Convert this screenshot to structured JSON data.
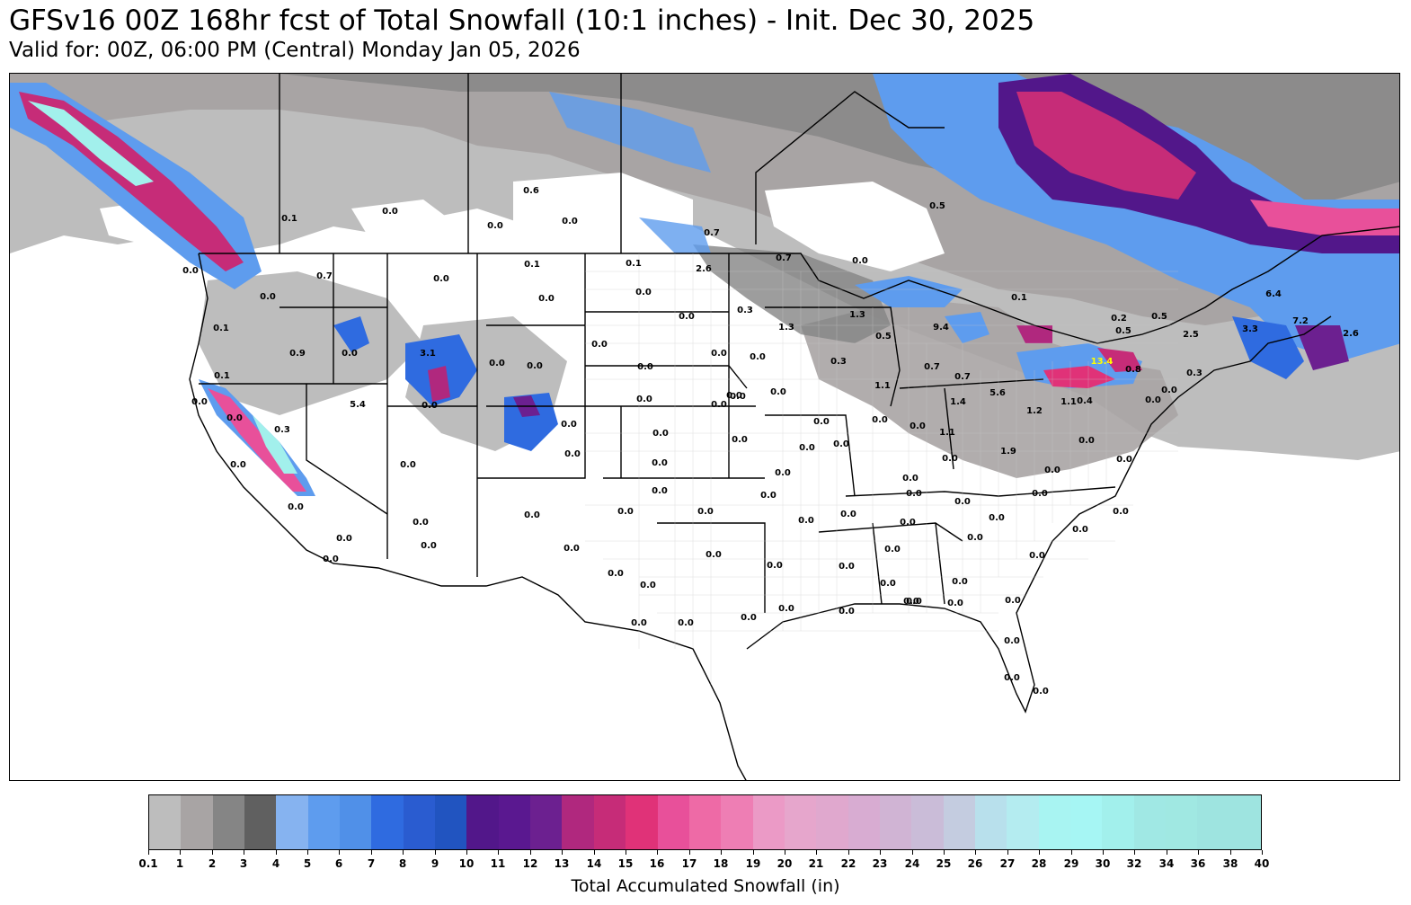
{
  "header": {
    "title": "GFSv16 00Z 168hr fcst of Total Snowfall (10:1 inches) - Init. Dec 30, 2025",
    "subtitle": "Valid for: 00Z, 06:00 PM (Central) Monday Jan 05, 2026"
  },
  "map": {
    "station_values": [
      {
        "label": "0.6"
      },
      {
        "label": "0.0"
      },
      {
        "label": "0.0"
      },
      {
        "label": "0.0"
      },
      {
        "label": "0.1"
      },
      {
        "label": "0.5"
      },
      {
        "label": "0.7"
      },
      {
        "label": "0.7"
      },
      {
        "label": "2.6"
      },
      {
        "label": "0.1"
      },
      {
        "label": "0.1"
      },
      {
        "label": "0.0"
      },
      {
        "label": "0.0"
      },
      {
        "label": "0.0"
      },
      {
        "label": "0.0"
      },
      {
        "label": "0.0"
      },
      {
        "label": "0.3"
      },
      {
        "label": "1.3"
      },
      {
        "label": "1.3"
      },
      {
        "label": "0.5"
      },
      {
        "label": "9.4"
      },
      {
        "label": "0.1"
      },
      {
        "label": "0.5"
      },
      {
        "label": "0.2"
      },
      {
        "label": "0.5"
      },
      {
        "label": "6.4"
      },
      {
        "label": "7.2"
      },
      {
        "label": "2.6"
      },
      {
        "label": "3.3"
      },
      {
        "label": "2.5"
      },
      {
        "label": "0.7"
      },
      {
        "label": "0.0"
      },
      {
        "label": "0.0"
      },
      {
        "label": "0.1"
      },
      {
        "label": "0.0"
      },
      {
        "label": "0.0"
      },
      {
        "label": "0.7"
      },
      {
        "label": "0.0"
      },
      {
        "label": "0.9"
      },
      {
        "label": "0.0"
      },
      {
        "label": "3.1"
      },
      {
        "label": "0.0"
      },
      {
        "label": "0.0"
      },
      {
        "label": "0.0"
      },
      {
        "label": "0.0"
      },
      {
        "label": "0.0"
      },
      {
        "label": "0.3"
      },
      {
        "label": "1.1"
      },
      {
        "label": "0.7"
      },
      {
        "label": "5.6"
      },
      {
        "label": "13.4"
      },
      {
        "label": "0.8"
      },
      {
        "label": "0.3"
      },
      {
        "label": "0.1"
      },
      {
        "label": "0.0"
      },
      {
        "label": "0.0"
      },
      {
        "label": "5.4"
      },
      {
        "label": "0.0"
      },
      {
        "label": "0.0"
      },
      {
        "label": "0.0"
      },
      {
        "label": "0.0"
      },
      {
        "label": "0.0"
      },
      {
        "label": "0.0"
      },
      {
        "label": "1.4"
      },
      {
        "label": "1.1"
      },
      {
        "label": "1.2"
      },
      {
        "label": "0.0"
      },
      {
        "label": "0.0"
      },
      {
        "label": "0.3"
      },
      {
        "label": "0.4"
      },
      {
        "label": "0.0"
      },
      {
        "label": "0.0"
      },
      {
        "label": "0.0"
      },
      {
        "label": "0.0"
      },
      {
        "label": "0.0"
      },
      {
        "label": "0.0"
      },
      {
        "label": "1.9"
      },
      {
        "label": "0.0"
      },
      {
        "label": "0.0"
      },
      {
        "label": "0.0"
      },
      {
        "label": "0.0"
      },
      {
        "label": "1.1"
      },
      {
        "label": "0.0"
      },
      {
        "label": "0.0"
      },
      {
        "label": "0.0"
      },
      {
        "label": "0.0"
      },
      {
        "label": "0.0"
      },
      {
        "label": "0.0"
      },
      {
        "label": "0.0"
      },
      {
        "label": "0.0"
      },
      {
        "label": "0.0"
      },
      {
        "label": "0.0"
      },
      {
        "label": "0.0"
      },
      {
        "label": "0.0"
      },
      {
        "label": "0.0"
      },
      {
        "label": "0.0"
      },
      {
        "label": "0.0"
      },
      {
        "label": "0.0"
      },
      {
        "label": "0.0"
      },
      {
        "label": "0.0"
      },
      {
        "label": "0.0"
      },
      {
        "label": "0.0"
      },
      {
        "label": "0.0"
      },
      {
        "label": "0.0"
      },
      {
        "label": "0.0"
      },
      {
        "label": "0.0"
      },
      {
        "label": "0.0"
      },
      {
        "label": "0.0"
      },
      {
        "label": "0.0"
      },
      {
        "label": "0.0"
      },
      {
        "label": "0.0"
      },
      {
        "label": "0.0"
      },
      {
        "label": "0.0"
      },
      {
        "label": "0.0"
      },
      {
        "label": "0.0"
      },
      {
        "label": "0.0"
      },
      {
        "label": "0.0"
      },
      {
        "label": "0.0"
      },
      {
        "label": "0.0"
      },
      {
        "label": "0.0"
      },
      {
        "label": "0.0"
      },
      {
        "label": "0.0"
      },
      {
        "label": "0.0"
      },
      {
        "label": "0.0"
      },
      {
        "label": "0.0"
      },
      {
        "label": "0.0"
      },
      {
        "label": "0.0"
      },
      {
        "label": "0.0"
      },
      {
        "label": "0.0"
      },
      {
        "label": "0.0"
      }
    ],
    "max_value_color": "#ffff00",
    "map_colors": {
      "land": "#ffffff",
      "border": "#000000"
    }
  },
  "colorbar": {
    "title": "Total Accumulated Snowfall (in)",
    "ticks": [
      "0.1",
      "1",
      "2",
      "3",
      "4",
      "5",
      "6",
      "7",
      "8",
      "9",
      "10",
      "11",
      "12",
      "13",
      "14",
      "15",
      "16",
      "17",
      "18",
      "19",
      "20",
      "21",
      "22",
      "23",
      "24",
      "25",
      "26",
      "27",
      "28",
      "29",
      "30",
      "32",
      "34",
      "36",
      "38",
      "40"
    ],
    "colors": [
      "#bdbdbd",
      "#a8a4a4",
      "#858585",
      "#606060",
      "#86b3f0",
      "#5e9cee",
      "#5090e8",
      "#2f6be0",
      "#2a5cd0",
      "#2154c0",
      "#52178a",
      "#5a1890",
      "#6c2090",
      "#b0287e",
      "#c62c78",
      "#e03278",
      "#e8509a",
      "#ee6aa6",
      "#ee7eb4",
      "#eb9ac6",
      "#e6a6cc",
      "#e0a8ce",
      "#d8acd2",
      "#d0b4d4",
      "#cabcd8",
      "#c4cce0",
      "#b8e0ec",
      "#b4ecf0",
      "#a8f4f2",
      "#a6f6f4",
      "#a2f0ec",
      "#a0e8e4",
      "#a0e8e2",
      "#9ee4e0",
      "#9ee4e0"
    ]
  }
}
